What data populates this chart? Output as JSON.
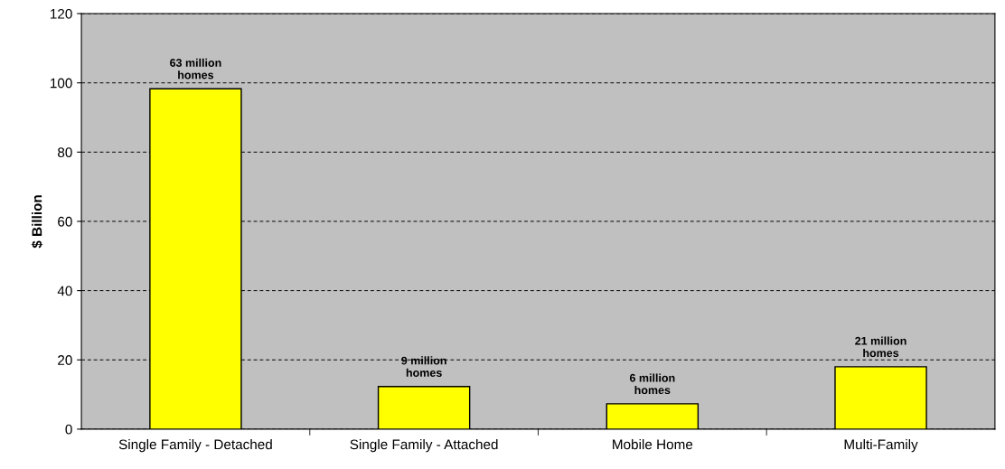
{
  "chart_data": {
    "type": "bar",
    "ylabel": "$ Billion",
    "categories": [
      "Single Family - Detached",
      "Single Family - Attached",
      "Mobile Home",
      "Multi-Family"
    ],
    "values": [
      98.3,
      12.3,
      7.3,
      18.0
    ],
    "annotations": [
      {
        "text": "63 million\nhomes",
        "x": "Single Family - Detached",
        "y": 98.3
      },
      {
        "text": "9 million\nhomes",
        "x": "Single Family - Attached",
        "y": 12.3
      },
      {
        "text": "6 million\nhomes",
        "x": "Mobile Home",
        "y": 7.3
      },
      {
        "text": "21 million\nhomes",
        "x": "Multi-Family",
        "y": 18.0
      }
    ],
    "color": "#ffff00",
    "ylim": [
      0,
      120
    ],
    "yticks": [
      0,
      20,
      40,
      60,
      80,
      100,
      120
    ],
    "grid": "y",
    "legend": false
  }
}
